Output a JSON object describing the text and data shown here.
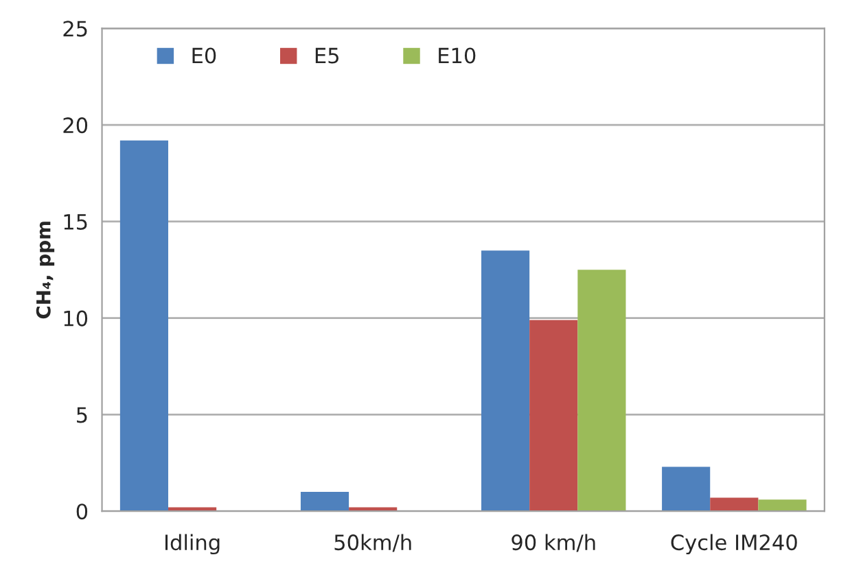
{
  "chart_data": {
    "type": "bar",
    "ylabel": "CH₄, ppm",
    "categories": [
      "Idling",
      "50km/h",
      "90 km/h",
      "Cycle IM240"
    ],
    "series": [
      {
        "name": "E0",
        "color": "#4f81bd",
        "values": [
          19.2,
          1.0,
          13.5,
          2.3
        ]
      },
      {
        "name": "E5",
        "color": "#c0504d",
        "values": [
          0.2,
          0.2,
          9.9,
          0.7
        ]
      },
      {
        "name": "E10",
        "color": "#9bbb59",
        "values": [
          null,
          null,
          12.5,
          0.6
        ]
      }
    ],
    "ylim": [
      0,
      25
    ],
    "yticks": [
      0,
      5,
      10,
      15,
      20,
      25
    ],
    "grid": "y",
    "legend": "top left"
  }
}
